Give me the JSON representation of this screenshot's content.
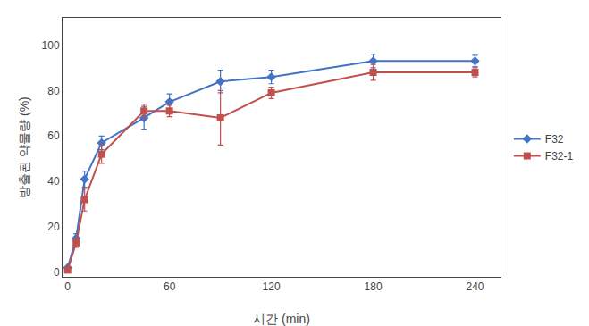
{
  "chart_data": {
    "type": "line",
    "xlabel": "시간 (min)",
    "ylabel": "방출된 약물량 (%)",
    "x": [
      0,
      5,
      10,
      20,
      45,
      60,
      90,
      120,
      180,
      240
    ],
    "series": [
      {
        "name": "F32",
        "color": "#4472C4",
        "marker": "diamond",
        "values": [
          2,
          15,
          41,
          57,
          68,
          75,
          84,
          86,
          93,
          93
        ],
        "yerr": [
          0.5,
          2.0,
          3.5,
          3.0,
          5.0,
          3.5,
          5.0,
          3.0,
          3.0,
          2.5
        ]
      },
      {
        "name": "F32-1",
        "color": "#C0504D",
        "marker": "square",
        "values": [
          1,
          13,
          32,
          52,
          71,
          71,
          68,
          79,
          88,
          88
        ],
        "yerr": [
          0.5,
          2.0,
          5.0,
          4.0,
          3.0,
          2.5,
          12.0,
          2.5,
          3.5,
          2.0
        ]
      }
    ],
    "xlim": [
      -3,
      255
    ],
    "xticks": [
      0,
      60,
      120,
      180,
      240
    ],
    "ylim": [
      -2,
      112
    ],
    "yticks": [
      0,
      20,
      40,
      60,
      80,
      100
    ],
    "grid": false,
    "legend": "right"
  }
}
